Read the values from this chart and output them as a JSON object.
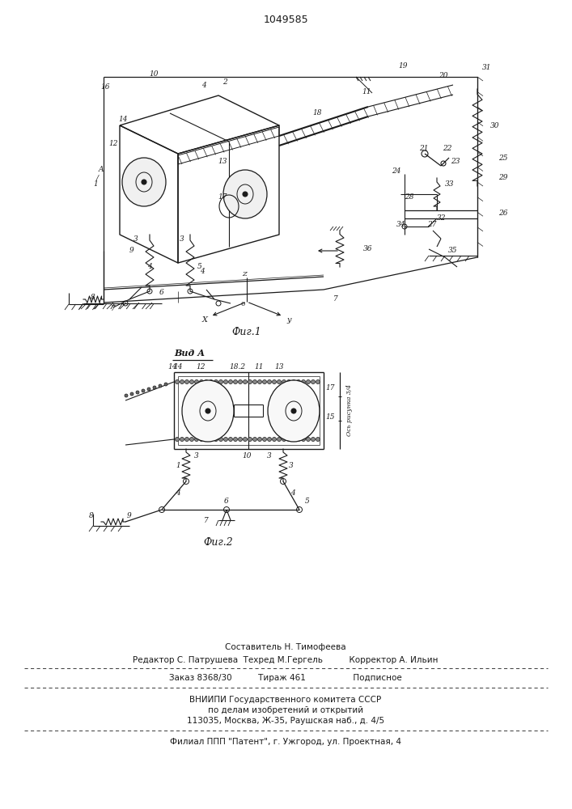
{
  "patent_number": "1049585",
  "fig1_caption": "Фиг.1",
  "fig2_caption": "Фиг.2",
  "view_label": "Вид А",
  "footer_line0": "Составитель Н. Тимофеева",
  "footer_line1": "Редактор С. Патрушева  Техред М.Гергель          Корректор А. Ильин",
  "footer_line2": "Заказ 8368/30          Тираж 461                  Подписное",
  "footer_line3": "ВНИИПИ Государственного комитета СССР",
  "footer_line4": "по делам изобретений и открытий",
  "footer_line5": "113035, Москва, Ж-35, Раушская наб., д. 4/5",
  "footer_line6": "Филиал ППП \"Патент\", г. Ужгород, ул. Проектная, 4",
  "bg_color": "#ffffff",
  "line_color": "#1a1a1a",
  "fig_width": 7.07,
  "fig_height": 10.0,
  "dpi": 100
}
